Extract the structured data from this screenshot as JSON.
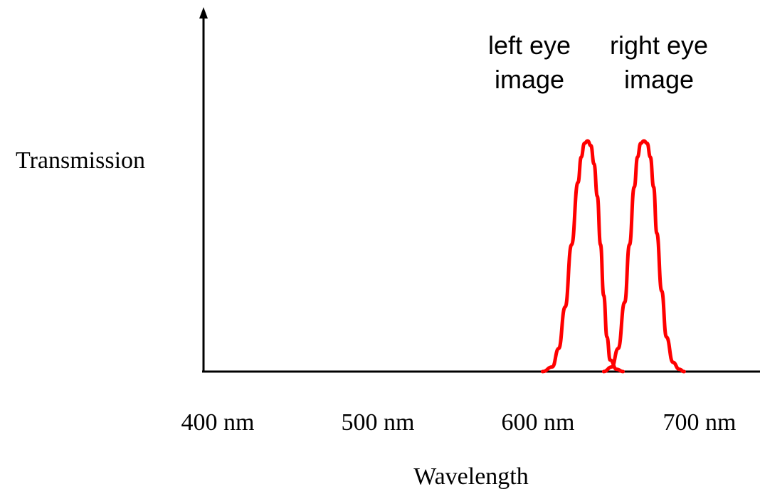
{
  "chart_data": {
    "type": "line",
    "title": "",
    "xlabel": "Wavelength",
    "ylabel": "Transmission",
    "x_tick_labels": [
      "400 nm",
      "500 nm",
      "600 nm",
      "700 nm"
    ],
    "x_ticks": [
      400,
      500,
      600,
      700
    ],
    "xlim": [
      400,
      740
    ],
    "ylim": [
      0,
      1.1
    ],
    "grid": false,
    "legend": "none",
    "series": [
      {
        "annotation": [
          "left eye",
          "image"
        ],
        "color": "#ff0000",
        "x": [
          602,
          608,
          612,
          616,
          620,
          624,
          626,
          628,
          630,
          632,
          634,
          636,
          638,
          640,
          642,
          644,
          648,
          652
        ],
        "y": [
          0,
          0.02,
          0.1,
          0.28,
          0.55,
          0.82,
          0.93,
          0.99,
          1.0,
          0.98,
          0.9,
          0.76,
          0.55,
          0.33,
          0.15,
          0.05,
          0.01,
          0
        ]
      },
      {
        "annotation": [
          "right eye",
          "image"
        ],
        "color": "#ff0000",
        "x": [
          640,
          645,
          649,
          653,
          656,
          659,
          661,
          663,
          665,
          667,
          669,
          671,
          673,
          676,
          679,
          683,
          687,
          690
        ],
        "y": [
          0,
          0.02,
          0.1,
          0.3,
          0.55,
          0.8,
          0.93,
          0.99,
          1.0,
          0.99,
          0.93,
          0.8,
          0.6,
          0.35,
          0.15,
          0.04,
          0.01,
          0
        ]
      }
    ]
  }
}
